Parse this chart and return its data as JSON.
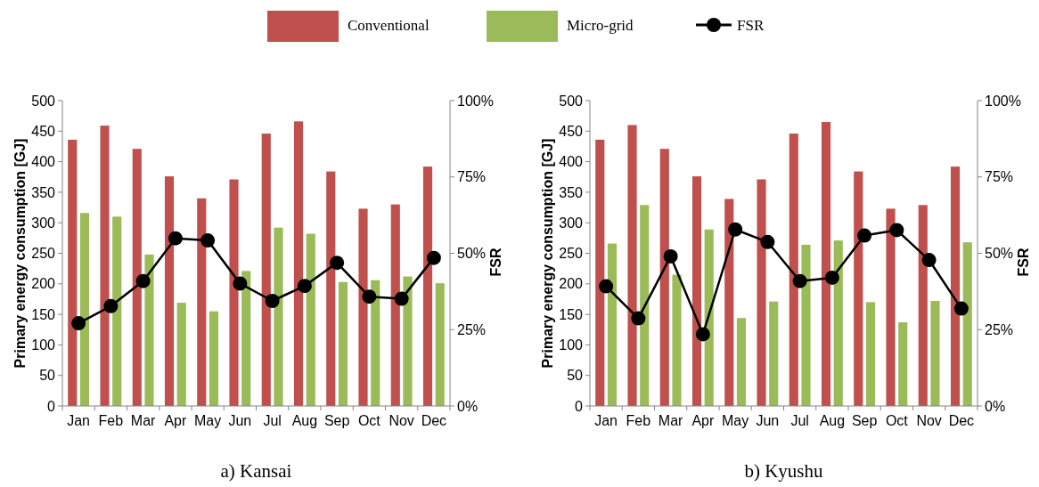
{
  "chart_data": [
    {
      "type": "bar",
      "title": "a) Kansai",
      "ylabel": "Primary energy consumption [GJ]",
      "y2label": "FSR",
      "categories": [
        "Jan",
        "Feb",
        "Mar",
        "Apr",
        "May",
        "Jun",
        "Jul",
        "Aug",
        "Sep",
        "Oct",
        "Nov",
        "Dec"
      ],
      "series": [
        {
          "name": "Conventional",
          "color": "#c0504d",
          "values": [
            436,
            459,
            421,
            376,
            340,
            371,
            446,
            466,
            384,
            323,
            330,
            392
          ]
        },
        {
          "name": "Micro-grid",
          "color": "#9bbb59",
          "values": [
            316,
            310,
            248,
            169,
            155,
            221,
            292,
            282,
            203,
            206,
            212,
            201
          ]
        },
        {
          "name": "FSR",
          "type": "line",
          "axis": "y2",
          "color": "#000000",
          "values": [
            27.1,
            32.7,
            40.9,
            54.9,
            54.2,
            40.1,
            34.4,
            39.3,
            46.9,
            35.8,
            35.1,
            48.5
          ]
        }
      ],
      "ylim": [
        0,
        500
      ],
      "yticks": [
        0,
        50,
        100,
        150,
        200,
        250,
        300,
        350,
        400,
        450,
        500
      ],
      "y2lim": [
        0,
        100
      ],
      "y2ticks": [
        {
          "value": 0,
          "label": "0%"
        },
        {
          "value": 25,
          "label": "25%"
        },
        {
          "value": 50,
          "label": "50%"
        },
        {
          "value": 75,
          "label": "75%"
        },
        {
          "value": 100,
          "label": "100%"
        }
      ],
      "marker": "circle",
      "legend": "top",
      "grid": false
    },
    {
      "type": "bar",
      "title": "b) Kyushu",
      "ylabel": "Primary energy consumption [GJ]",
      "y2label": "FSR",
      "categories": [
        "Jan",
        "Feb",
        "Mar",
        "Apr",
        "May",
        "Jun",
        "Jul",
        "Aug",
        "Sep",
        "Oct",
        "Nov",
        "Dec"
      ],
      "series": [
        {
          "color": "#c0504d",
          "values": [
            436,
            460,
            421,
            376,
            339,
            371,
            446,
            465,
            384,
            323,
            329,
            392
          ]
        },
        {
          "color": "#9bbb59",
          "values": [
            266,
            329,
            215,
            289,
            144,
            171,
            264,
            271,
            170,
            137,
            172,
            268
          ]
        },
        {
          "type": "line",
          "axis": "y2",
          "color": "#000000",
          "values": [
            39.2,
            28.7,
            49.0,
            23.5,
            57.8,
            53.7,
            40.9,
            42.0,
            55.8,
            57.6,
            47.8,
            31.9
          ]
        }
      ],
      "ylim": [
        0,
        500
      ],
      "yticks": [
        0,
        50,
        100,
        150,
        200,
        250,
        300,
        350,
        400,
        450,
        500
      ],
      "y2lim": [
        0,
        100
      ],
      "y2ticks": [
        {
          "value": 0,
          "label": "0%"
        },
        {
          "value": 25,
          "label": "25%"
        },
        {
          "value": 50,
          "label": "50%"
        },
        {
          "value": 75,
          "label": "75%"
        },
        {
          "value": 100,
          "label": "100%"
        }
      ],
      "marker": "circle",
      "grid": false
    }
  ]
}
